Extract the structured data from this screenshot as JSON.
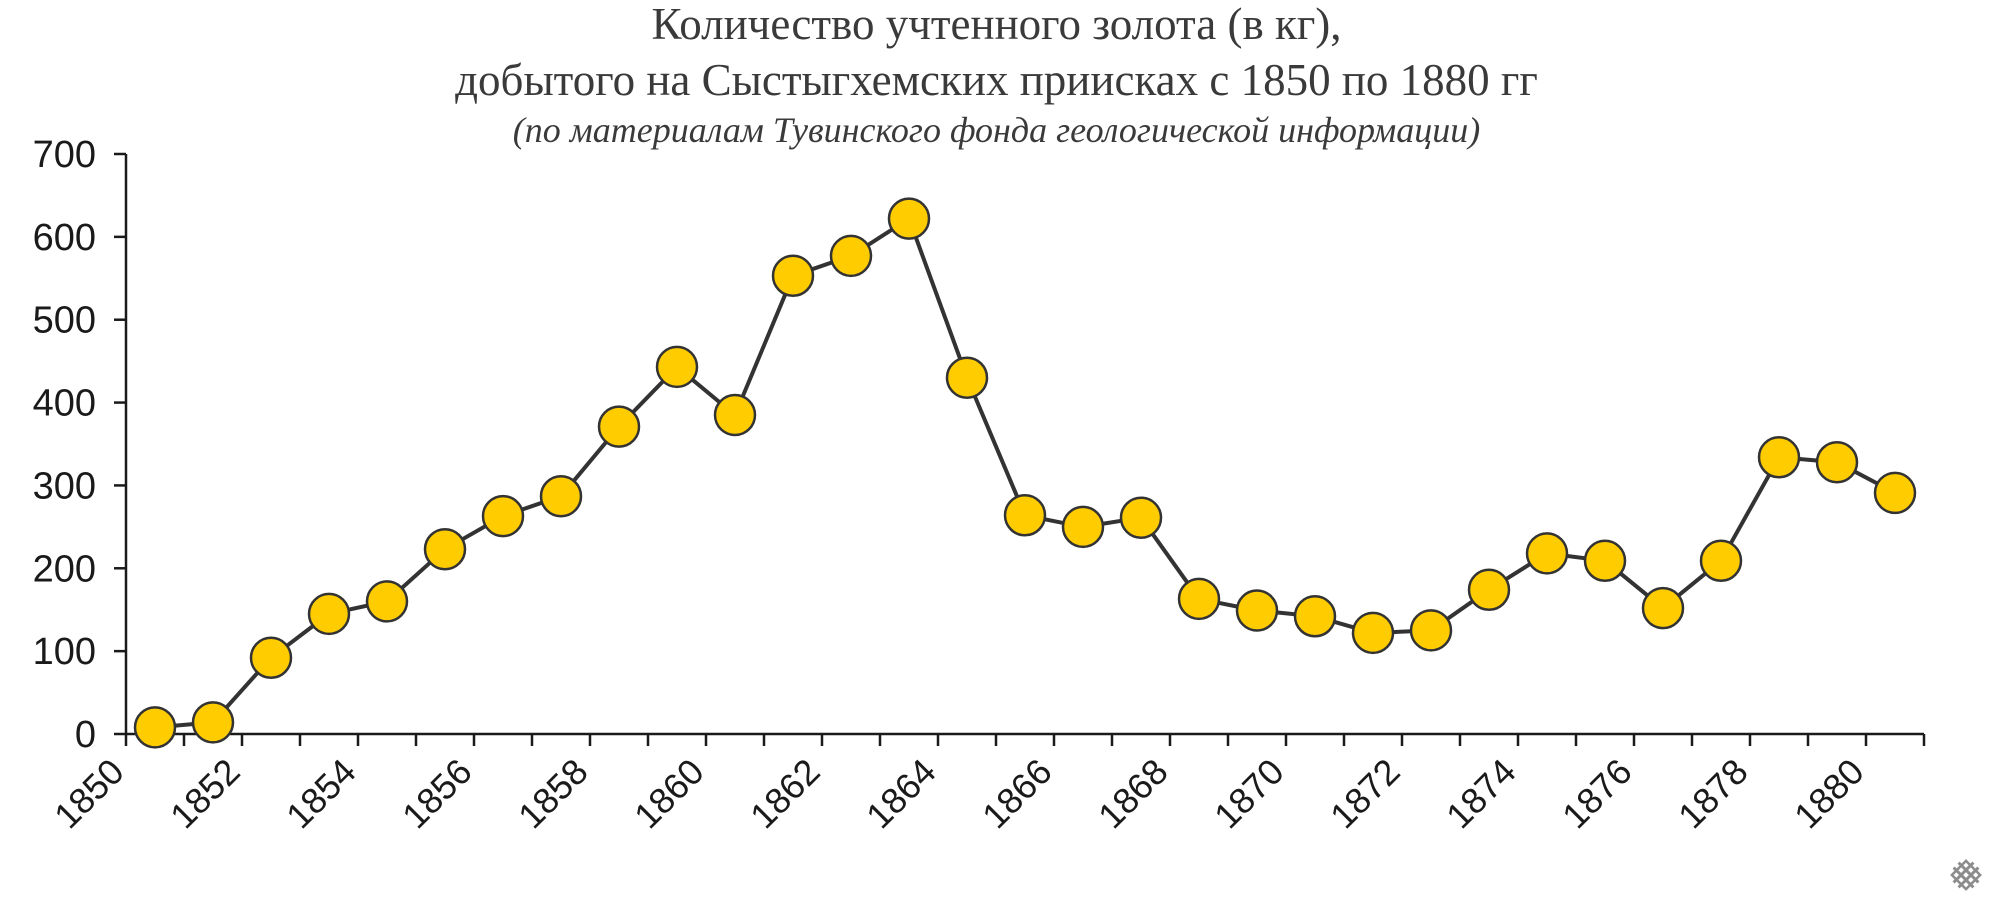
{
  "chart_data": {
    "type": "line",
    "title_line1": "Количество учтенного золота (в кг),",
    "title_line2": "добытого на Сыстыгхемских приисках с 1850 по 1880 гг",
    "subtitle": "(по материалам Тувинского фонда геологической информации)",
    "xlabel": "",
    "ylabel": "",
    "ylim": [
      0,
      700
    ],
    "yticks": [
      0,
      100,
      200,
      300,
      400,
      500,
      600,
      700
    ],
    "xlim": [
      1850,
      1881
    ],
    "xtick_labels": [
      "1850",
      "1852",
      "1854",
      "1856",
      "1858",
      "1860",
      "1862",
      "1864",
      "1866",
      "1868",
      "1870",
      "1872",
      "1874",
      "1876",
      "1878",
      "1880"
    ],
    "x": [
      1850,
      1851,
      1852,
      1853,
      1854,
      1855,
      1856,
      1857,
      1858,
      1859,
      1860,
      1861,
      1862,
      1863,
      1864,
      1865,
      1866,
      1867,
      1868,
      1869,
      1870,
      1871,
      1872,
      1873,
      1874,
      1875,
      1876,
      1877,
      1878,
      1879,
      1880
    ],
    "series": [
      {
        "values": [
          8,
          14,
          92,
          145,
          160,
          223,
          263,
          287,
          371,
          443,
          385,
          553,
          577,
          622,
          430,
          264,
          250,
          261,
          163,
          149,
          142,
          122,
          125,
          174,
          218,
          209,
          152,
          209,
          334,
          328,
          291
        ],
        "line_color": "#333333",
        "marker_color": "#FFCC00",
        "marker_edge_color": "#333333"
      }
    ],
    "grid": false,
    "legend": "none"
  },
  "watermark": {
    "icon": "endless-knot-icon",
    "color": "#8c8c8c"
  }
}
